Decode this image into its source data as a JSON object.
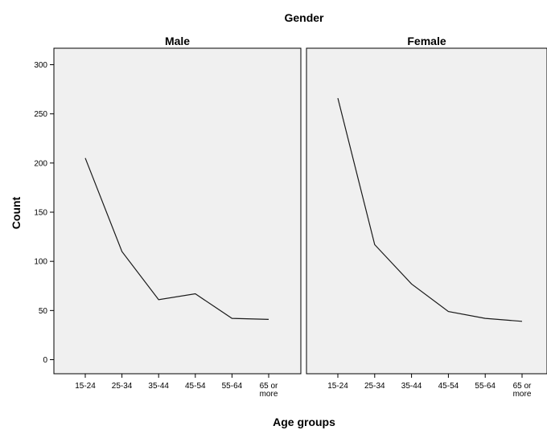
{
  "chart_data": {
    "type": "line",
    "title": "Gender",
    "xlabel": "Age groups",
    "ylabel": "Count",
    "ylim": [
      0,
      300
    ],
    "yticks": [
      0,
      50,
      100,
      150,
      200,
      250,
      300
    ],
    "categories": [
      "15-24",
      "25-34",
      "35-44",
      "45-54",
      "55-64",
      "65 or more"
    ],
    "category_display": [
      [
        "15-24"
      ],
      [
        "25-34"
      ],
      [
        "35-44"
      ],
      [
        "45-54"
      ],
      [
        "55-64"
      ],
      [
        "65 or",
        "more"
      ]
    ],
    "panels": [
      {
        "name": "Male",
        "values": [
          205,
          110,
          61,
          67,
          42,
          41
        ]
      },
      {
        "name": "Female",
        "values": [
          266,
          117,
          77,
          49,
          42,
          39
        ]
      }
    ],
    "grid": false,
    "line_color": "#1a1a1a",
    "panel_background": "#f0f0f0"
  }
}
